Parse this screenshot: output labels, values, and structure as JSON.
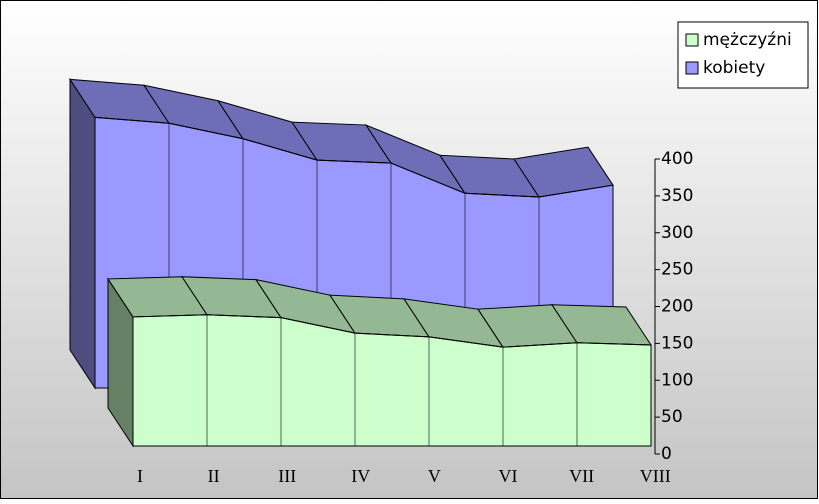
{
  "chart_data": {
    "type": "area3d",
    "categories": [
      "I",
      "II",
      "III",
      "IV",
      "V",
      "VI",
      "VII",
      "VIII"
    ],
    "series": [
      {
        "name": "mężczyźni",
        "color": "#ccffcc",
        "values": [
          175,
          178,
          174,
          153,
          148,
          134,
          140,
          137
        ]
      },
      {
        "name": "kobiety",
        "color": "#9999ff",
        "values": [
          367,
          359,
          338,
          309,
          305,
          264,
          259,
          275
        ]
      }
    ],
    "ylim": [
      0,
      400
    ],
    "yticks": [
      0,
      50,
      100,
      150,
      200,
      250,
      300,
      350,
      400
    ],
    "legend": "top-right"
  }
}
